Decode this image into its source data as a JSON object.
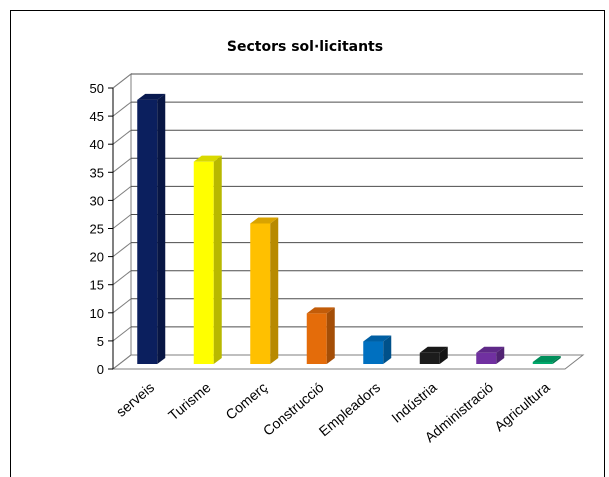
{
  "chart_data": {
    "type": "bar",
    "title": "Sectors sol·licitants",
    "categories": [
      "serveis",
      "Turisme",
      "Comerç",
      "Construcció",
      "Empleadors",
      "Indústria",
      "Administració",
      "Agricultura"
    ],
    "values": [
      47,
      36,
      25,
      9,
      4,
      2,
      2,
      0
    ],
    "colors": [
      "#0b1f5e",
      "#ffff00",
      "#ffc000",
      "#e46c0a",
      "#0070c0",
      "#1c1c1c",
      "#7030a0",
      "#00a86b"
    ],
    "ylim": [
      0,
      50
    ],
    "yticks": [
      "0",
      "5",
      "10",
      "15",
      "20",
      "25",
      "30",
      "35",
      "40",
      "45",
      "50"
    ],
    "xlabel": "",
    "ylabel": "",
    "grid": true,
    "legend": "none"
  }
}
